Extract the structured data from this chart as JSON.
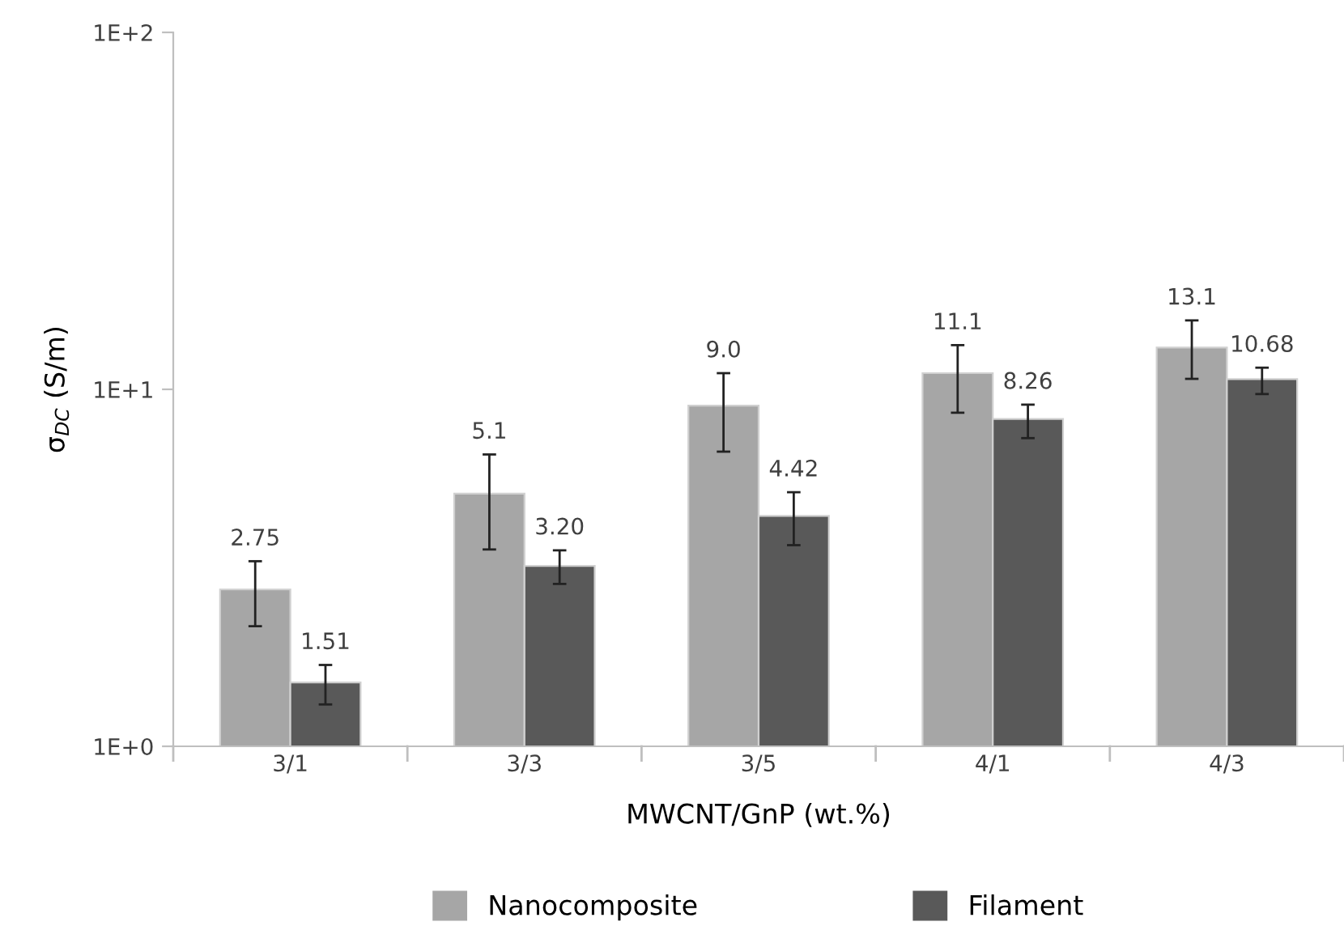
{
  "chart_data": {
    "type": "bar",
    "xlabel": "MWCNT/GnP (wt.%)",
    "ylabel": "σ$_{DC}$ (S/m)",
    "categories": [
      "3/1",
      "3/3",
      "3/5",
      "4/1",
      "4/3"
    ],
    "series": [
      {
        "name": "Nanocomposite",
        "color": "#a6a6a6",
        "values": [
          2.75,
          5.1,
          9.0,
          11.1,
          13.1
        ],
        "value_labels": [
          "2.75",
          "5.1",
          "9.0",
          "11.1",
          "13.1"
        ],
        "errors": [
          [
            2.17,
            3.3
          ],
          [
            3.56,
            6.57
          ],
          [
            6.69,
            11.1
          ],
          [
            8.6,
            13.3
          ],
          [
            10.7,
            15.6
          ]
        ]
      },
      {
        "name": "Filament",
        "color": "#595959",
        "values": [
          1.51,
          3.2,
          4.42,
          8.26,
          10.68
        ],
        "value_labels": [
          "1.51",
          "3.20",
          "4.42",
          "8.26",
          "10.68"
        ],
        "errors": [
          [
            1.31,
            1.69
          ],
          [
            2.85,
            3.54
          ],
          [
            3.66,
            5.15
          ],
          [
            7.3,
            9.06
          ],
          [
            9.7,
            11.5
          ]
        ]
      }
    ],
    "log": "y",
    "ylim": [
      1,
      100
    ],
    "yticks": [
      {
        "value": 1,
        "label": "1E+0"
      },
      {
        "value": 10,
        "label": "1E+1"
      },
      {
        "value": 100,
        "label": "1E+2"
      }
    ],
    "grid": false,
    "legend": "bottom"
  }
}
